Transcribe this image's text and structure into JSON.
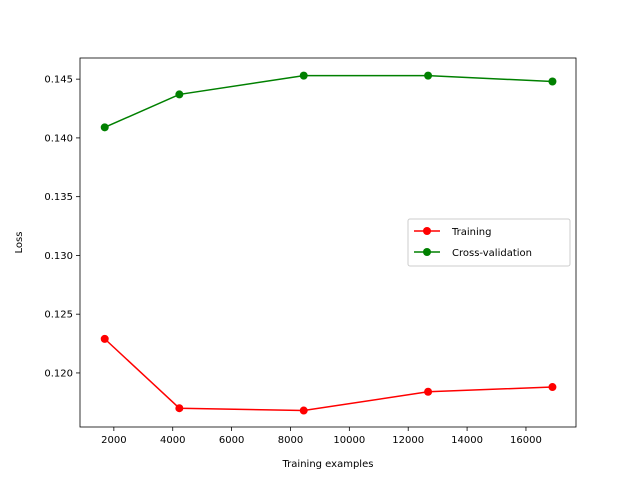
{
  "chart_data": {
    "type": "line",
    "title": "",
    "xlabel": "Training examples",
    "ylabel": "Loss",
    "xlim": [
      850,
      17700
    ],
    "ylim": [
      0.1154,
      0.1468
    ],
    "xticks": [
      2000,
      4000,
      6000,
      8000,
      10000,
      12000,
      14000,
      16000
    ],
    "xtick_labels": [
      "2000",
      "4000",
      "6000",
      "8000",
      "10000",
      "12000",
      "14000",
      "16000"
    ],
    "yticks": [
      0.12,
      0.125,
      0.13,
      0.135,
      0.14,
      0.145
    ],
    "ytick_labels": [
      "0.120",
      "0.125",
      "0.130",
      "0.135",
      "0.140",
      "0.145"
    ],
    "grid": false,
    "legend_position": "center-right",
    "x": [
      1690,
      4225,
      8450,
      12675,
      16900
    ],
    "series": [
      {
        "name": "Training",
        "color": "#ff0000",
        "marker": "circle",
        "values": [
          0.1229,
          0.117,
          0.1168,
          0.1184,
          0.1188
        ]
      },
      {
        "name": "Cross-validation",
        "color": "#008000",
        "marker": "circle",
        "values": [
          0.1409,
          0.1437,
          0.1453,
          0.1453,
          0.1448
        ]
      }
    ]
  }
}
